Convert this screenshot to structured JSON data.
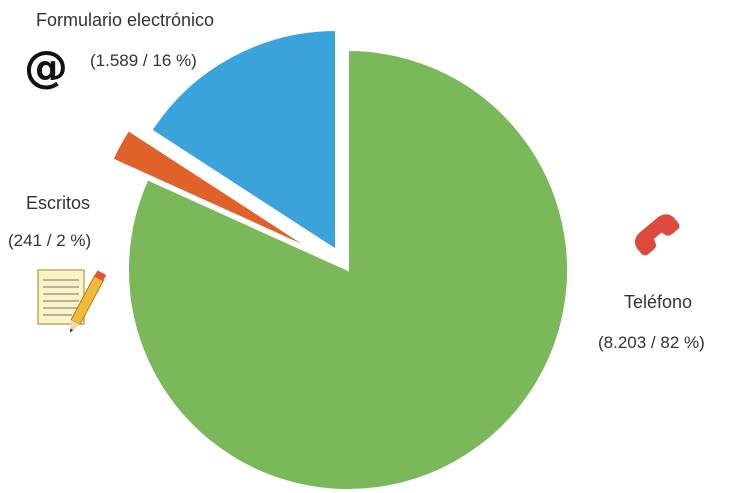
{
  "chart_data": {
    "type": "pie",
    "exploded": true,
    "slices": [
      {
        "label": "Teléfono",
        "value": 8203,
        "percent": 82,
        "value_text": "(8.203 / 82 %)",
        "color": "#7ab85a",
        "icon": "phone-icon"
      },
      {
        "label": "Escritos",
        "value": 241,
        "percent": 2,
        "value_text": "(241 / 2 %)",
        "color": "#e0612a",
        "icon": "notepad-pencil-icon"
      },
      {
        "label": "Formulario electrónico",
        "value": 1589,
        "percent": 16,
        "value_text": "(1.589 / 16 %)",
        "color": "#3aa3dc",
        "icon": "at-sign-icon"
      }
    ]
  }
}
